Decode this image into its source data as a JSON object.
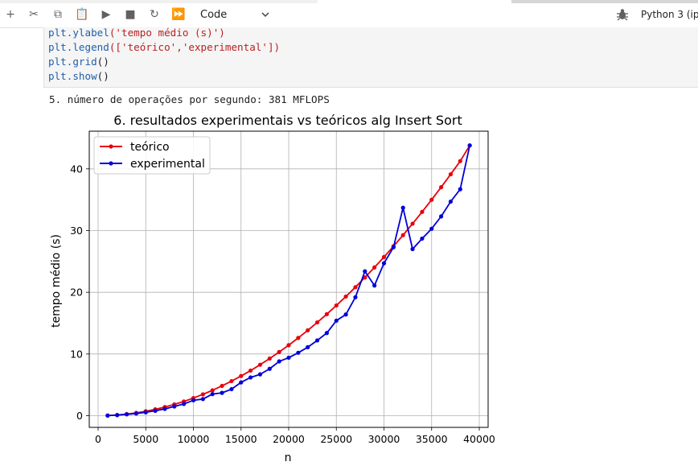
{
  "toolbar": {
    "buttons": [
      {
        "name": "add-cell-button",
        "icon": "plus-icon",
        "glyph": "+"
      },
      {
        "name": "cut-button",
        "icon": "scissors-icon",
        "glyph": "✂"
      },
      {
        "name": "copy-button",
        "icon": "copy-icon",
        "glyph": "⧉"
      },
      {
        "name": "paste-button",
        "icon": "clipboard-icon",
        "glyph": "📋"
      },
      {
        "name": "run-button",
        "icon": "play-icon",
        "glyph": "▶"
      },
      {
        "name": "stop-button",
        "icon": "stop-icon",
        "glyph": "■"
      },
      {
        "name": "restart-button",
        "icon": "refresh-icon",
        "glyph": "↻"
      },
      {
        "name": "run-all-button",
        "icon": "fast-forward-icon",
        "glyph": "⏩"
      }
    ],
    "cell_type": "Code",
    "kernel": "Python 3 (ip"
  },
  "code": {
    "lines": [
      {
        "fn": "plt.ylabel",
        "args": "('tempo médio (s)')"
      },
      {
        "fn": "plt.legend",
        "args": "(['teórico','experimental'])"
      },
      {
        "fn": "plt.grid",
        "args": "()"
      },
      {
        "fn": "plt.show",
        "args": "()"
      }
    ]
  },
  "output": {
    "text": "5. número de operações por segundo: 381 MFLOPS"
  },
  "chart_data": {
    "type": "line",
    "title": "6. resultados experimentais vs teóricos alg Insert Sort",
    "xlabel": "n",
    "ylabel": "tempo médio (s)",
    "xlim": [
      0,
      40000
    ],
    "ylim": [
      0,
      45
    ],
    "x_ticks": [
      0,
      5000,
      10000,
      15000,
      20000,
      25000,
      30000,
      35000,
      40000
    ],
    "y_ticks": [
      0,
      10,
      20,
      30,
      40
    ],
    "grid": true,
    "legend_position": "top-left",
    "x": [
      1000,
      2000,
      3000,
      4000,
      5000,
      6000,
      7000,
      8000,
      9000,
      10000,
      11000,
      12000,
      13000,
      14000,
      15000,
      16000,
      17000,
      18000,
      19000,
      20000,
      21000,
      22000,
      23000,
      24000,
      25000,
      26000,
      27000,
      28000,
      29000,
      30000,
      31000,
      32000,
      33000,
      34000,
      35000,
      36000,
      37000,
      38000,
      39000
    ],
    "series": [
      {
        "name": "teórico",
        "color": "#e8000b",
        "values": [
          0.03,
          0.11,
          0.26,
          0.46,
          0.72,
          1.03,
          1.4,
          1.83,
          2.31,
          2.86,
          3.46,
          4.11,
          4.83,
          5.6,
          6.43,
          7.31,
          8.26,
          9.26,
          10.32,
          11.43,
          12.6,
          13.83,
          15.12,
          16.46,
          17.86,
          19.31,
          20.83,
          22.4,
          24.03,
          25.71,
          27.46,
          29.26,
          31.12,
          33.03,
          35.0,
          37.03,
          39.12,
          41.26,
          43.8
        ]
      },
      {
        "name": "experimental",
        "color": "#0000d9",
        "values": [
          0.02,
          0.1,
          0.22,
          0.35,
          0.55,
          0.8,
          1.1,
          1.5,
          1.9,
          2.5,
          2.7,
          3.5,
          3.7,
          4.3,
          5.4,
          6.2,
          6.7,
          7.6,
          8.8,
          9.4,
          10.2,
          11.1,
          12.2,
          13.4,
          15.4,
          16.4,
          19.2,
          23.4,
          21.1,
          24.7,
          27.3,
          33.7,
          27.0,
          28.7,
          30.3,
          32.3,
          34.7,
          36.7,
          43.8
        ]
      }
    ]
  }
}
